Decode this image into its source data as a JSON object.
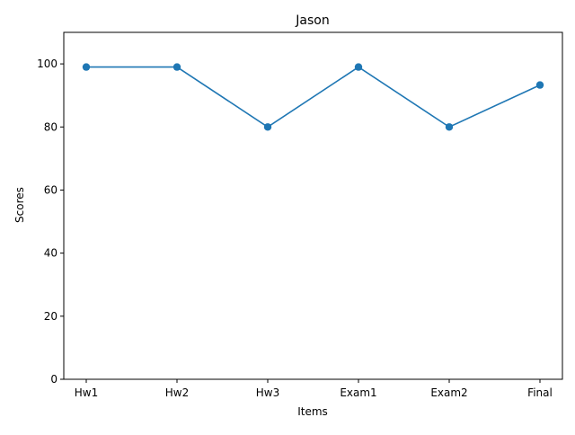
{
  "chart_data": {
    "type": "line",
    "title": "Jason",
    "xlabel": "Items",
    "ylabel": "Scores",
    "categories": [
      "Hw1",
      "Hw2",
      "Hw3",
      "Exam1",
      "Exam2",
      "Final"
    ],
    "series": [
      {
        "values": [
          99,
          99,
          80,
          99,
          80,
          93.3
        ],
        "color": "#1f77b4",
        "marker": "circle"
      }
    ],
    "ylim": [
      0,
      110
    ],
    "yticks": [
      0,
      20,
      40,
      60,
      80,
      100
    ],
    "grid": false,
    "legend": "none"
  }
}
